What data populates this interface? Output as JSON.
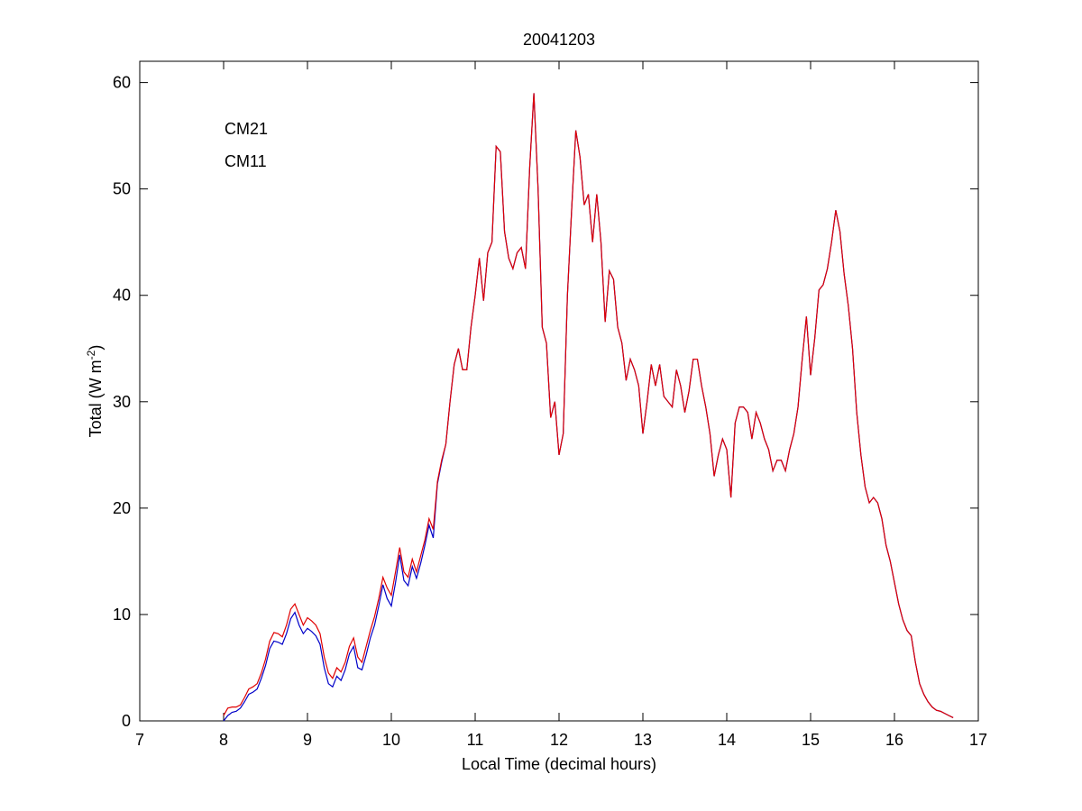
{
  "chart_data": {
    "type": "line",
    "title": "20041203",
    "xlabel": "Local Time (decimal hours)",
    "ylabel": [
      "Total (W m",
      "-2",
      ")"
    ],
    "xlim": [
      7,
      17
    ],
    "xticks": [
      7,
      8,
      9,
      10,
      11,
      12,
      13,
      14,
      15,
      16,
      17
    ],
    "ylim": [
      0,
      62
    ],
    "yticks": [
      0,
      10,
      20,
      30,
      40,
      50,
      60
    ],
    "grid": false,
    "legend": "upper left",
    "x": [
      8,
      8.05,
      8.1,
      8.15,
      8.2,
      8.25,
      8.3,
      8.35,
      8.4,
      8.45,
      8.5,
      8.55,
      8.6,
      8.65,
      8.7,
      8.75,
      8.8,
      8.85,
      8.9,
      8.95,
      9,
      9.05,
      9.1,
      9.15,
      9.2,
      9.25,
      9.3,
      9.35,
      9.4,
      9.45,
      9.5,
      9.55,
      9.6,
      9.65,
      9.7,
      9.75,
      9.8,
      9.85,
      9.9,
      9.95,
      10,
      10.05,
      10.1,
      10.15,
      10.2,
      10.25,
      10.3,
      10.35,
      10.4,
      10.45,
      10.5,
      10.55,
      10.6,
      10.65,
      10.7,
      10.75,
      10.8,
      10.85,
      10.9,
      10.95,
      11,
      11.05,
      11.1,
      11.15,
      11.2,
      11.25,
      11.3,
      11.35,
      11.4,
      11.45,
      11.5,
      11.55,
      11.6,
      11.65,
      11.7,
      11.75,
      11.8,
      11.85,
      11.9,
      11.95,
      12,
      12.05,
      12.1,
      12.15,
      12.2,
      12.25,
      12.3,
      12.35,
      12.4,
      12.45,
      12.5,
      12.55,
      12.6,
      12.65,
      12.7,
      12.75,
      12.8,
      12.85,
      12.9,
      12.95,
      13,
      13.05,
      13.1,
      13.15,
      13.2,
      13.25,
      13.3,
      13.35,
      13.4,
      13.45,
      13.5,
      13.55,
      13.6,
      13.65,
      13.7,
      13.75,
      13.8,
      13.85,
      13.9,
      13.95,
      14,
      14.05,
      14.1,
      14.15,
      14.2,
      14.25,
      14.3,
      14.35,
      14.4,
      14.45,
      14.5,
      14.55,
      14.6,
      14.65,
      14.7,
      14.75,
      14.8,
      14.85,
      14.9,
      14.95,
      15,
      15.05,
      15.1,
      15.15,
      15.2,
      15.25,
      15.3,
      15.35,
      15.4,
      15.45,
      15.5,
      15.55,
      15.6,
      15.65,
      15.7,
      15.75,
      15.8,
      15.85,
      15.9,
      15.95,
      16,
      16.05,
      16.1,
      16.15,
      16.2,
      16.25,
      16.3,
      16.35,
      16.4,
      16.45,
      16.5,
      16.55,
      16.6,
      16.65,
      16.7
    ],
    "series": [
      {
        "name": "CM21",
        "color": "#0000c8",
        "values": [
          0,
          0.5,
          0.8,
          0.9,
          1.2,
          1.8,
          2.5,
          2.7,
          3,
          4,
          5.2,
          6.8,
          7.5,
          7.4,
          7.2,
          8.2,
          9.6,
          10.2,
          9,
          8.2,
          8.7,
          8.4,
          8,
          7.2,
          5,
          3.5,
          3.2,
          4.2,
          3.8,
          4.8,
          6.3,
          7,
          5,
          4.8,
          6.2,
          7.8,
          9,
          10.8,
          12.8,
          11.5,
          10.8,
          13,
          15.6,
          13.2,
          12.7,
          14.5,
          13.4,
          14.8,
          16.5,
          18.4,
          17.2,
          22.3,
          24.3,
          26,
          30,
          33.5,
          35,
          33,
          33,
          37,
          40,
          43.5,
          39.5,
          44,
          45,
          54,
          53.5,
          46,
          43.5,
          42.5,
          44,
          44.5,
          42.5,
          52,
          59,
          50,
          37,
          35.5,
          28.5,
          30,
          25,
          27,
          40,
          48,
          55.5,
          53,
          48.5,
          49.5,
          45,
          49.5,
          45,
          37.5,
          42.3,
          41.5,
          37,
          35.5,
          32,
          34,
          33,
          31.5,
          27,
          30,
          33.5,
          31.5,
          33.5,
          30.5,
          30,
          29.5,
          33,
          31.5,
          29,
          31,
          34,
          34,
          31.5,
          29.5,
          27,
          23,
          25,
          26.5,
          25.5,
          21,
          28,
          29.5,
          29.5,
          29,
          26.5,
          29,
          28,
          26.5,
          25.5,
          23.5,
          24.5,
          24.5,
          23.5,
          25.5,
          27,
          29.5,
          34,
          38,
          32.5,
          36,
          40.5,
          41,
          42.5,
          45,
          48,
          46,
          42,
          39,
          35,
          29,
          25,
          22,
          20.5,
          21,
          20.5,
          19,
          16.5,
          15,
          13,
          11,
          9.5,
          8.5,
          8,
          5.5,
          3.5,
          2.5,
          1.8,
          1.3,
          1,
          0.9,
          0.7,
          0.5,
          0.3
        ]
      },
      {
        "name": "CM11",
        "color": "#e00000",
        "values": [
          0.5,
          1.2,
          1.3,
          1.3,
          1.5,
          2.2,
          3,
          3.2,
          3.5,
          4.5,
          5.8,
          7.5,
          8.3,
          8.2,
          7.9,
          9,
          10.5,
          11,
          10,
          9,
          9.7,
          9.4,
          9,
          8.2,
          6,
          4.5,
          4,
          5,
          4.6,
          5.5,
          7,
          7.8,
          6,
          5.5,
          7,
          8.5,
          9.8,
          11.5,
          13.5,
          12.5,
          11.8,
          14,
          16.3,
          14,
          13.5,
          15.2,
          14,
          15.5,
          17,
          19,
          18,
          22.5,
          24.5,
          26,
          30,
          33.5,
          35,
          33,
          33,
          37,
          40,
          43.5,
          39.5,
          44,
          45,
          54,
          53.5,
          46,
          43.5,
          42.5,
          44,
          44.5,
          42.5,
          52,
          59,
          50,
          37,
          35.5,
          28.5,
          30,
          25,
          27,
          40,
          48,
          55.5,
          53,
          48.5,
          49.5,
          45,
          49.5,
          45,
          37.5,
          42.3,
          41.5,
          37,
          35.5,
          32,
          34,
          33,
          31.5,
          27,
          30,
          33.5,
          31.5,
          33.5,
          30.5,
          30,
          29.5,
          33,
          31.5,
          29,
          31,
          34,
          34,
          31.5,
          29.5,
          27,
          23,
          25,
          26.5,
          25.5,
          21,
          28,
          29.5,
          29.5,
          29,
          26.5,
          29,
          28,
          26.5,
          25.5,
          23.5,
          24.5,
          24.5,
          23.5,
          25.5,
          27,
          29.5,
          34,
          38,
          32.5,
          36,
          40.5,
          41,
          42.5,
          45,
          48,
          46,
          42,
          39,
          35,
          29,
          25,
          22,
          20.5,
          21,
          20.5,
          19,
          16.5,
          15,
          13,
          11,
          9.5,
          8.5,
          8,
          5.5,
          3.5,
          2.5,
          1.8,
          1.3,
          1,
          0.9,
          0.7,
          0.5,
          0.3
        ]
      }
    ]
  }
}
